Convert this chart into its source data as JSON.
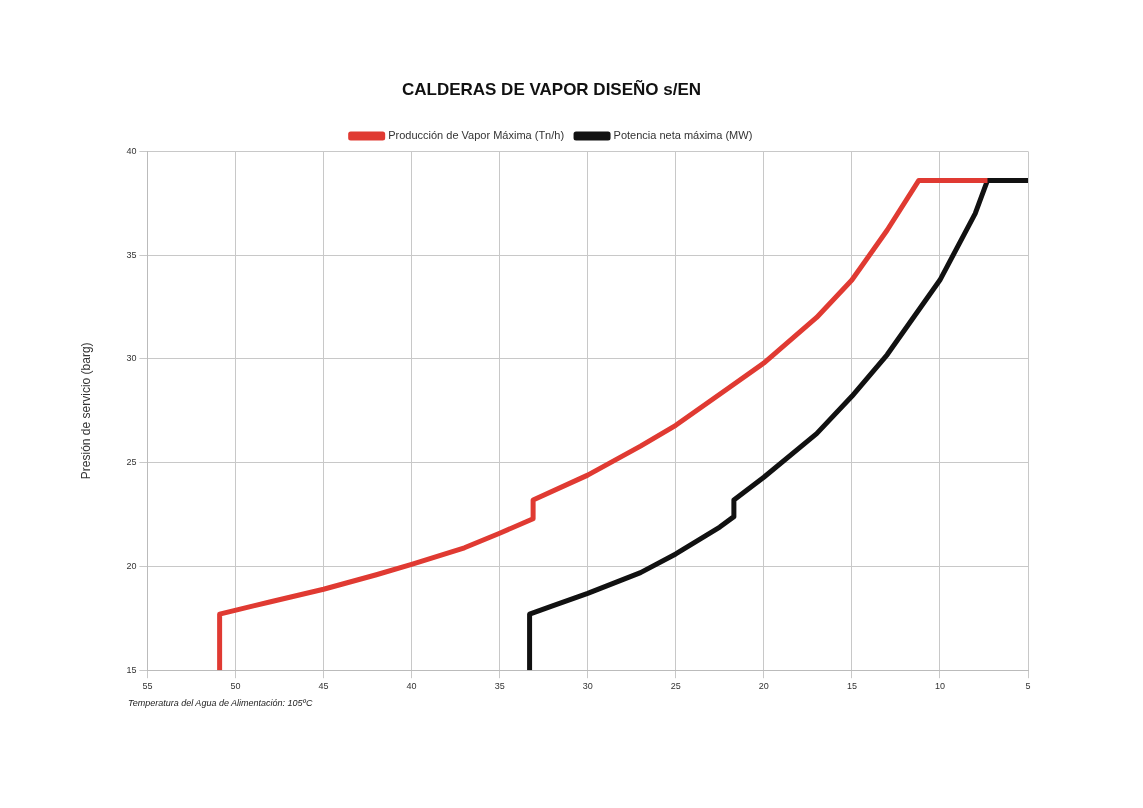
{
  "chart_data": {
    "type": "line",
    "title": "CALDERAS DE VAPOR DISEÑO s/EN",
    "ylabel": "Presión de servicio (barg)",
    "annotations": [
      "Temperatura del Agua de Alimentación: 105ºC"
    ],
    "series": [
      {
        "name": "Producción de Vapor Máxima (Tn/h)",
        "color": "#e03a32",
        "x": [
          50.9,
          50.9,
          48,
          45,
          42,
          40,
          37,
          35,
          33.1,
          33.1,
          30,
          27,
          25,
          22,
          20,
          17,
          15,
          13,
          11.2,
          7.3
        ],
        "values": [
          15,
          17.7,
          18.3,
          18.9,
          19.6,
          20.1,
          20.9,
          21.6,
          22.3,
          23.2,
          24.4,
          25.8,
          26.8,
          28.6,
          29.8,
          32,
          33.8,
          36.2,
          38.6,
          38.6
        ]
      },
      {
        "name": "Potencia neta máxima (MW)",
        "color": "#111111",
        "x": [
          33.3,
          33.3,
          32,
          30,
          27,
          25,
          22.5,
          21.7,
          21.7,
          20,
          17,
          15,
          13,
          10,
          8,
          7.3,
          5
        ],
        "values": [
          15,
          17.7,
          18.1,
          18.7,
          19.7,
          20.6,
          21.9,
          22.4,
          23.2,
          24.3,
          26.4,
          28.2,
          30.2,
          33.8,
          37,
          38.6,
          38.6
        ]
      }
    ],
    "xlim": [
      55,
      5
    ],
    "xticks": [
      55,
      50,
      45,
      40,
      35,
      30,
      25,
      20,
      15,
      10,
      5
    ],
    "ylim": [
      15,
      40
    ],
    "yticks": [
      15,
      20,
      25,
      30,
      35,
      40
    ],
    "grid": true,
    "legend": "top",
    "marker": "none",
    "line_style": "solid"
  }
}
